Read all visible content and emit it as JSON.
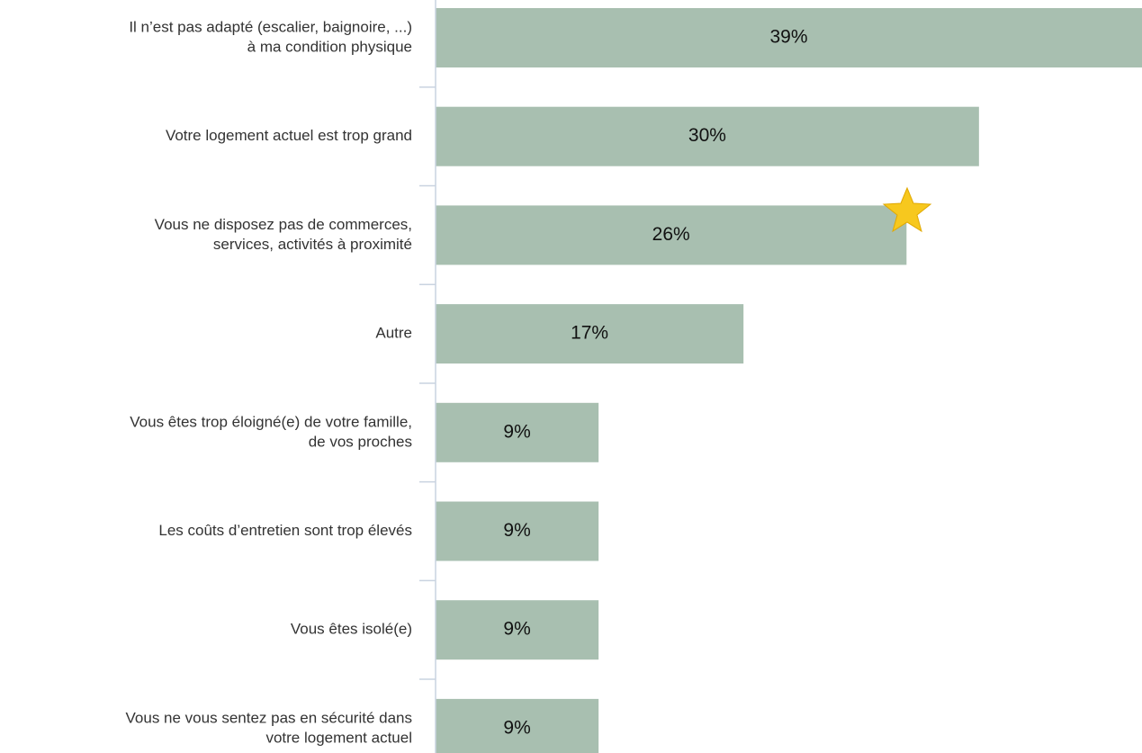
{
  "chart_data": {
    "type": "hbar",
    "categories": [
      [
        "Il n’est pas adapté (escalier, baignoire, ...)",
        "à ma condition physique"
      ],
      [
        "Votre logement actuel est trop grand"
      ],
      [
        "Vous ne disposez pas de commerces,",
        "services, activités à proximité"
      ],
      [
        "Autre"
      ],
      [
        "Vous êtes trop éloigné(e) de votre famille,",
        "de vos proches"
      ],
      [
        "Les coûts d’entretien sont trop élevés"
      ],
      [
        "Vous êtes isolé(e)"
      ],
      [
        "Vous ne vous sentez pas en sécurité dans",
        "votre logement actuel"
      ]
    ],
    "values": [
      39,
      30,
      26,
      17,
      9,
      9,
      9,
      9
    ],
    "value_labels": [
      "39%",
      "30%",
      "26%",
      "17%",
      "9%",
      "9%",
      "9%",
      "9%"
    ],
    "color": "#a8bfb0"
  }
}
